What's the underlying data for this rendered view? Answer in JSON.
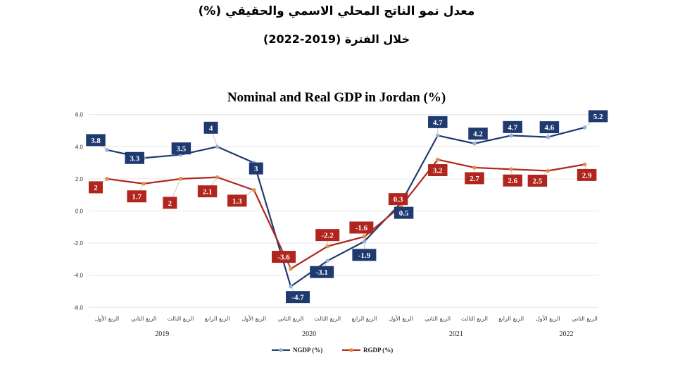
{
  "header": {
    "title_line1": "معدل نمو الناتج المحلي الاسمي والحقيقي (%)",
    "title_line2": "خلال الفترة (2019-2022)"
  },
  "chart_data": {
    "type": "line",
    "title": "Nominal and Real GDP in Jordan (%)",
    "ylim": [
      -6,
      6
    ],
    "yticks": [
      "6.0",
      "4.0",
      "2.0",
      "0.0",
      "-2.0",
      "-4.0",
      "-6.0"
    ],
    "grid": true,
    "legend_position": "bottom-center",
    "categories": [
      "الربع الأول",
      "الربع الثاني",
      "الربع الثالث",
      "الربع الرابع",
      "الربع الأول",
      "الربع الثاني",
      "الربع الثالث",
      "الربع الرابع",
      "الربع الأول",
      "الربع الثاني",
      "الربع الثالث",
      "الربع الرابع",
      "الربع الأول",
      "الربع الثاني"
    ],
    "years": [
      {
        "label": "2019",
        "start": 0,
        "end": 3
      },
      {
        "label": "2020",
        "start": 4,
        "end": 7
      },
      {
        "label": "2021",
        "start": 8,
        "end": 11
      },
      {
        "label": "2022",
        "start": 12,
        "end": 13
      }
    ],
    "series": [
      {
        "name": "NGDP (%)",
        "color": "#1f3a6e",
        "marker_color": "#8fb0df",
        "values": [
          3.8,
          3.3,
          3.5,
          4.0,
          3.0,
          -4.7,
          -3.1,
          -1.9,
          0.5,
          4.7,
          4.2,
          4.7,
          4.6,
          5.2
        ],
        "labels": [
          "3.8",
          "3.3",
          "3.5",
          "4",
          "3",
          "-4.7",
          "-3.1",
          "-1.9",
          "0.5",
          "4.7",
          "4.2",
          "4.7",
          "4.6",
          "5.2"
        ]
      },
      {
        "name": "RGDP (%)",
        "color": "#b0261e",
        "marker_color": "#e58a3c",
        "values": [
          2.0,
          1.7,
          2.0,
          2.1,
          1.3,
          -3.6,
          -2.2,
          -1.6,
          0.3,
          3.2,
          2.7,
          2.6,
          2.5,
          2.9
        ],
        "labels": [
          "2",
          "1.7",
          "2",
          "2.1",
          "1.3",
          "-3.6",
          "-2.2",
          "-1.6",
          "0.3",
          "3.2",
          "2.7",
          "2.6",
          "2.5",
          "2.9"
        ]
      }
    ]
  }
}
